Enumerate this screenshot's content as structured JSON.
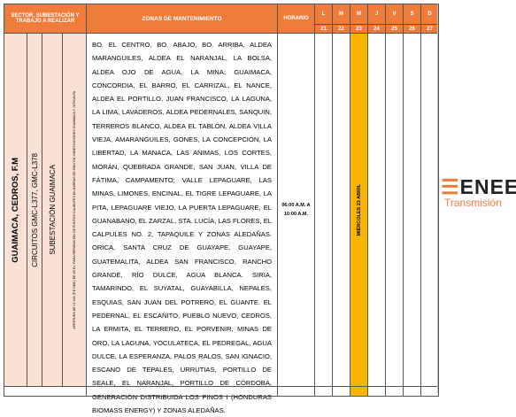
{
  "header": {
    "sector": "SECTOR, SUBESTACIÓN Y TRABAJO A REALIZAR",
    "zonas": "ZONAS DE MANTENIMIENTO",
    "horario": "HORARIO",
    "days": [
      {
        "letter": "L",
        "date": "21"
      },
      {
        "letter": "M",
        "date": "22"
      },
      {
        "letter": "M",
        "date": "23"
      },
      {
        "letter": "J",
        "date": "24"
      },
      {
        "letter": "V",
        "date": "25"
      },
      {
        "letter": "S",
        "date": "26"
      },
      {
        "letter": "D",
        "date": "27"
      }
    ]
  },
  "row": {
    "sector": "GUAIMACA, CEDROS, F.M",
    "circuitos": "CIRCUITOS GMC-L377, GMC-L378",
    "subestacion": "SUBESTACIÓN GUAIMACA",
    "trabajo": "APERTURA DE LT-461 (P.E GMC) DE 69 KV, PARA REPARACIÓN DE PUNTOS CALIENTES EN BARRAS DE 69KV EN SUBESTACIONES GUAIMACA Y JUTICALPA.",
    "zonas": "BO. EL CENTRO, BO. ABAJO, BO. ARRIBA, ALDEA MARANGUILES, ALDEA EL NARANJAL, LA BOLSA, ALDEA OJO DE AGUA, LA MINA; GUAIMACA, CONCORDIA, EL BARRO, EL CARRIZAL, EL NANCE, ALDEA EL PORTILLO, JUAN FRANCISCO, LA LAGUNA, LA LIMA, LAVADEROS, ALDEA PEDERNALES, SANQUIN, TERREROS BLANCO, ALDEA EL TABLÓN, ALDEA VILLA VIEJA, AMARANGUILES, GONES, LA CONCEPCIÓN, LA LIBERTAD, LA MANACA, LAS ANIMAS, LOS CORTES, MORÁN, QUEBRADA GRANDE, SAN JUAN, VILLA DE FÁTIMA, CAMPAMENTO; VALLE LEPAGUARE, LAS MINAS, LIMONES, ENCINAL, EL TIGRE LEPAGUARE, LA PITA, LEPAGUARE VIEJO, LA PUERTA LEPAGUARE, EL GUANABANO, EL ZARZAL, STA. LUCÍA, LAS FLORES, EL CALPULES NO. 2, TAPAQUILE Y ZONAS ALEDAÑAS. ORICA, SANTA CRUZ DE GUAYAPE, GUAYAPE, GUATEMALITA, ALDEA SAN FRANCISCO, RANCHO GRANDE, RÍO DULCE, AGUA BLANCA. SIRIA, TAMARINDO, EL SUYATAL, GUAYABILLA, NEPALES, ESQUIAS, SAN JUAN DEL POTRERO, EL GUANTE. EL PEDERNAL, EL ESCANITO, PUEBLO NUEVO, CEDROS, LA ERMITA, EL TERRERO, EL PORVENIR, MINAS DE ORO, LA LAGUNA, YOCULATECA, EL PEDREGAL, AGUA DULCE, LA ESPERANZA, PALOS RALOS, SAN IGNACIO, ESCANO DE TEPALES, URRUTIAS, PORTILLO DE SEALE, EL NARANJAL, PORTILLO DE CÓRDOBA, GENERACIÓN DISTRIBUIDA LOS PINOS I (HONDURAS BIOMASS ENERGY) Y ZONAS ALEDAÑAS.",
    "horario": "06:00 A.M. A 10:00 A.M.",
    "fecha": "MIÉRCOLES 23 ABRIL"
  },
  "logo": {
    "brand": "ENEE",
    "subtitle": "Transmisión"
  }
}
